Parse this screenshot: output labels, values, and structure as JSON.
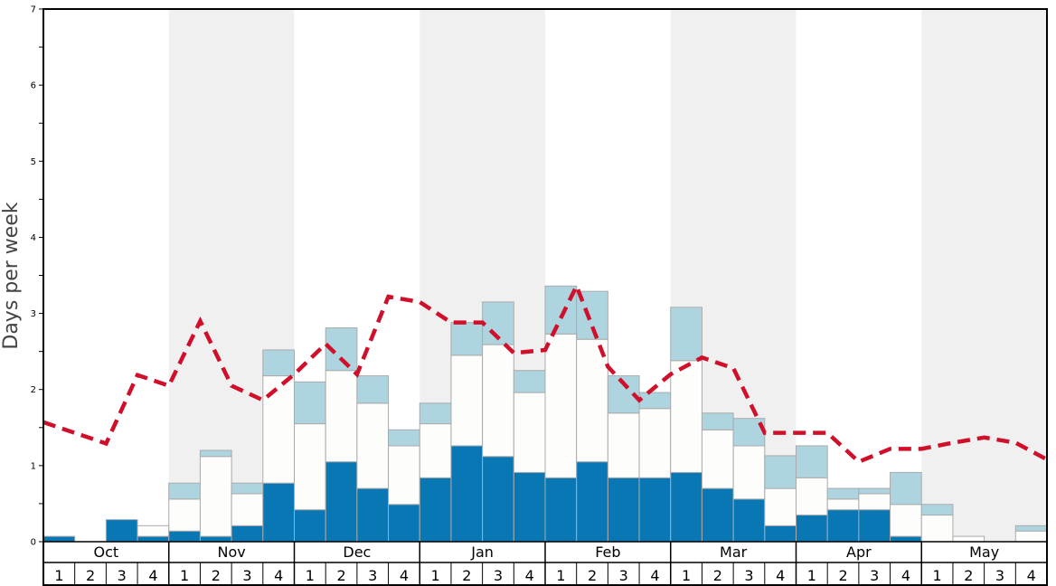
{
  "chart_data": {
    "type": "bar",
    "stacked": true,
    "ylabel": "Days per week",
    "ylim": [
      0,
      7
    ],
    "yticks": [
      "0",
      "1",
      "2",
      "3",
      "4",
      "5",
      "6",
      "7"
    ],
    "months": [
      "Oct",
      "Nov",
      "Dec",
      "Jan",
      "Feb",
      "Mar",
      "Apr",
      "May"
    ],
    "week_labels": [
      "1",
      "2",
      "3",
      "4"
    ],
    "shaded_months": [
      "Nov",
      "Jan",
      "Mar",
      "May"
    ],
    "colors": {
      "series1": "#0a77b5",
      "series2": "#fdfdfb",
      "series3": "#aed4e0",
      "line": "#d0102b",
      "shade": "#f0f0f0"
    },
    "series": [
      {
        "name": "bottom (dark blue)",
        "values": [
          0.07,
          0,
          0.29,
          0.07,
          0.14,
          0.07,
          0.21,
          0.77,
          0.42,
          1.05,
          0.7,
          0.49,
          0.84,
          1.26,
          1.12,
          0.91,
          0.84,
          1.05,
          0.84,
          0.84,
          0.91,
          0.7,
          0.56,
          0.21,
          0.35,
          0.42,
          0.42,
          0.07,
          0,
          0,
          0,
          0
        ]
      },
      {
        "name": "middle (white)",
        "values": [
          0,
          0,
          0,
          0.14,
          0.42,
          1.05,
          0.42,
          1.41,
          1.13,
          1.2,
          1.12,
          0.77,
          0.71,
          1.19,
          1.47,
          1.05,
          1.89,
          1.61,
          0.85,
          0.91,
          1.47,
          0.77,
          0.7,
          0.49,
          0.49,
          0.14,
          0.21,
          0.42,
          0.35,
          0.07,
          0,
          0.14
        ]
      },
      {
        "name": "top (light blue)",
        "values": [
          0,
          0,
          0,
          0,
          0.21,
          0.08,
          0.14,
          0.34,
          0.55,
          0.56,
          0.36,
          0.21,
          0.27,
          0.43,
          0.56,
          0.29,
          0.63,
          0.63,
          0.49,
          0.21,
          0.7,
          0.22,
          0.36,
          0.43,
          0.42,
          0.14,
          0.07,
          0.42,
          0.14,
          0,
          0,
          0.07
        ]
      }
    ],
    "line": {
      "name": "average (dashed)",
      "values": [
        1.57,
        1.43,
        1.29,
        2.19,
        2.05,
        2.9,
        2.05,
        1.86,
        2.2,
        2.6,
        2.2,
        3.22,
        3.15,
        2.88,
        2.88,
        2.48,
        2.52,
        3.36,
        2.3,
        1.86,
        2.2,
        2.42,
        2.28,
        1.43,
        1.43,
        1.43,
        1.05,
        1.22,
        1.22,
        1.3,
        1.37,
        1.3,
        1.08
      ]
    }
  }
}
